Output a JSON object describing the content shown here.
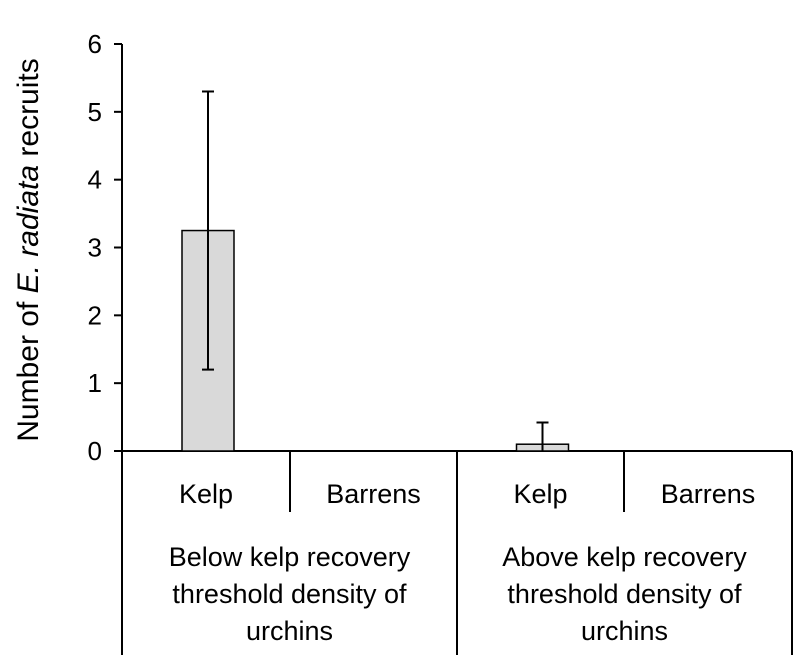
{
  "chart_data": {
    "type": "bar",
    "ylabel_parts": [
      {
        "text": "Number of ",
        "italic": false
      },
      {
        "text": "E. radiata",
        "italic": true
      },
      {
        "text": " recruits",
        "italic": false
      }
    ],
    "ylim": [
      0,
      6
    ],
    "yticks": [
      "0",
      "1",
      "2",
      "3",
      "4",
      "5",
      "6"
    ],
    "categories": [
      "Kelp",
      "Barrens",
      "Kelp",
      "Barrens"
    ],
    "values": [
      3.25,
      0,
      0.1,
      0
    ],
    "error_plus": [
      2.05,
      0,
      0.32,
      0
    ],
    "error_minus": [
      2.05,
      0,
      0.1,
      0
    ],
    "bar_color": "#d9d9d9",
    "groups": [
      {
        "lines": [
          "Below kelp recovery",
          "threshold density of",
          "urchins"
        ]
      },
      {
        "lines": [
          "Above kelp recovery",
          "threshold density of",
          "urchins"
        ]
      }
    ]
  }
}
